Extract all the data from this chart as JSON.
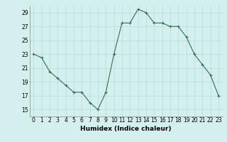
{
  "x": [
    0,
    1,
    2,
    3,
    4,
    5,
    6,
    7,
    8,
    9,
    10,
    11,
    12,
    13,
    14,
    15,
    16,
    17,
    18,
    19,
    20,
    21,
    22,
    23
  ],
  "y": [
    23,
    22.5,
    20.5,
    19.5,
    18.5,
    17.5,
    17.5,
    16,
    15,
    17.5,
    23,
    27.5,
    27.5,
    29.5,
    29,
    27.5,
    27.5,
    27,
    27,
    25.5,
    23,
    21.5,
    20,
    17
  ],
  "title": "",
  "xlabel": "Humidex (Indice chaleur)",
  "ylabel": "",
  "ylim": [
    14,
    30
  ],
  "xlim": [
    -0.5,
    23.5
  ],
  "yticks": [
    15,
    17,
    19,
    21,
    23,
    25,
    27,
    29
  ],
  "xticks": [
    0,
    1,
    2,
    3,
    4,
    5,
    6,
    7,
    8,
    9,
    10,
    11,
    12,
    13,
    14,
    15,
    16,
    17,
    18,
    19,
    20,
    21,
    22,
    23
  ],
  "line_color": "#2e6e5e",
  "marker": "+",
  "bg_color": "#d4f0ee",
  "grid_color": "#b8dbd8",
  "axis_bg": "#d4f0ee",
  "label_fontsize": 6.5,
  "tick_fontsize": 5.5
}
